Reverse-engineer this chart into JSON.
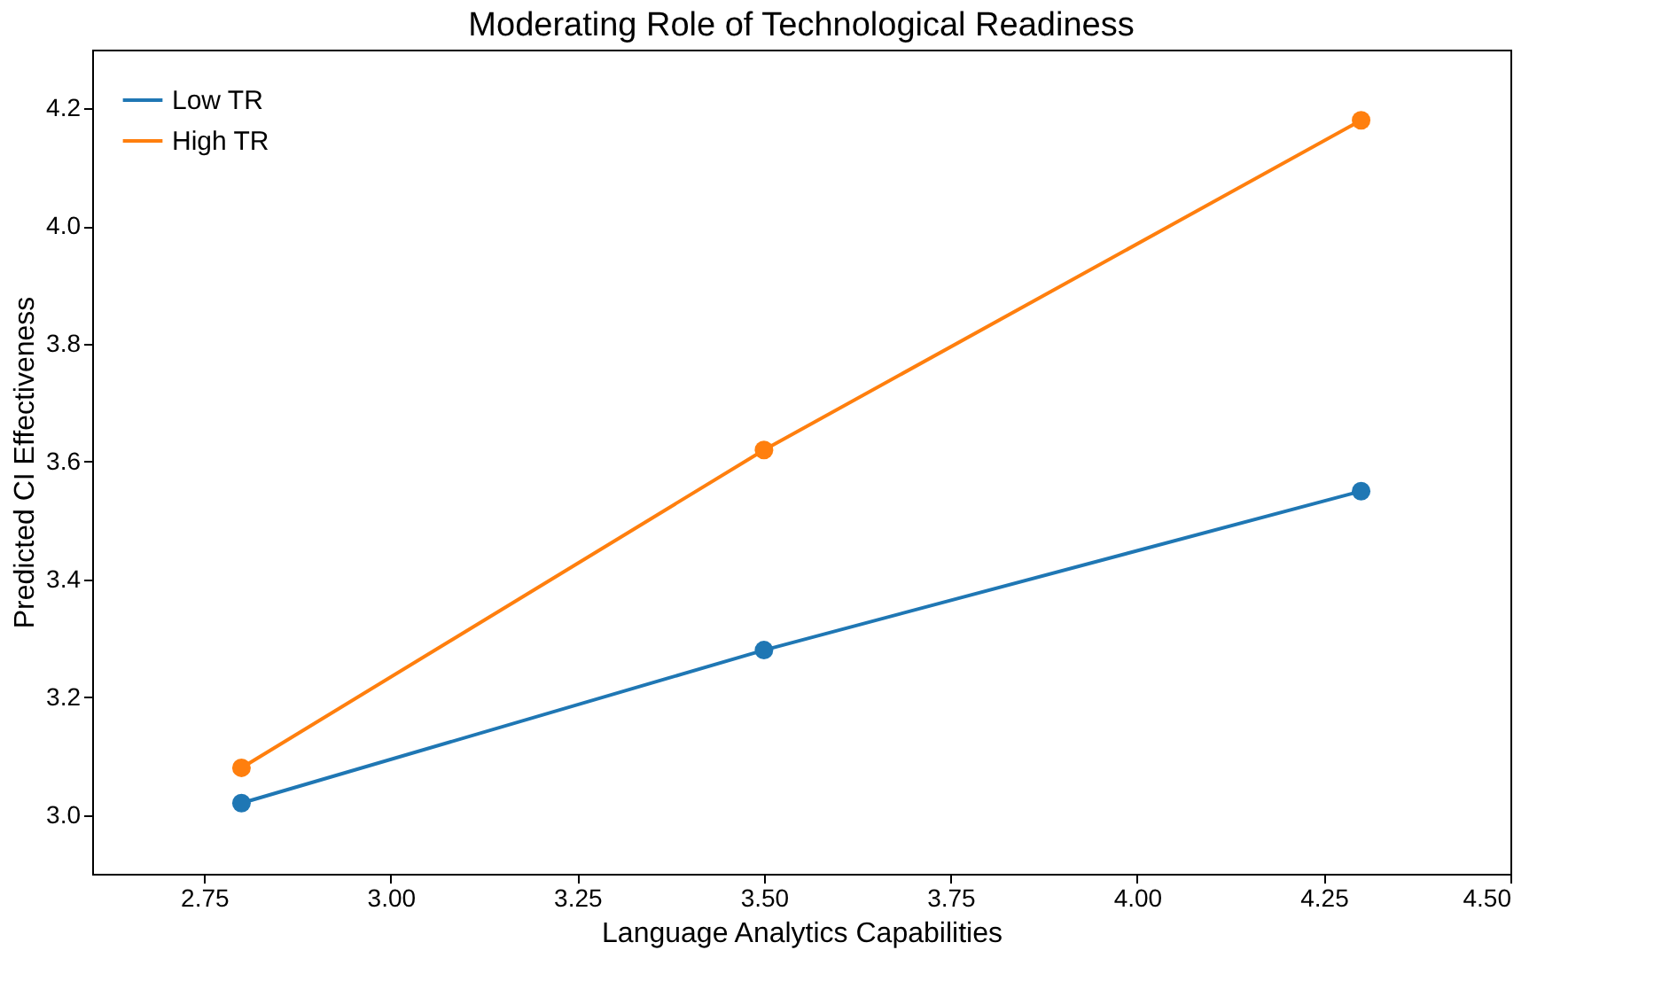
{
  "chart_data": {
    "type": "line",
    "title": "Moderating Role of Technological Readiness",
    "xlabel": "Language Analytics Capabilities",
    "ylabel": "Predicted CI Effectiveness",
    "x": [
      2.8,
      3.5,
      4.3
    ],
    "series": [
      {
        "name": "Low TR",
        "color": "#1f77b4",
        "values": [
          3.02,
          3.28,
          3.55
        ]
      },
      {
        "name": "High TR",
        "color": "#ff7f0e",
        "values": [
          3.08,
          3.62,
          4.18
        ]
      }
    ],
    "xlim": [
      2.6,
      4.5
    ],
    "xticks": [
      {
        "value": 2.75,
        "label": "2.75"
      },
      {
        "value": 3.0,
        "label": "3.00"
      },
      {
        "value": 3.25,
        "label": "3.25"
      },
      {
        "value": 3.5,
        "label": "3.50"
      },
      {
        "value": 3.75,
        "label": "3.75"
      },
      {
        "value": 4.0,
        "label": "4.00"
      },
      {
        "value": 4.25,
        "label": "4.25"
      },
      {
        "value": 4.5,
        "label": "4.50"
      }
    ],
    "ylim": [
      2.9,
      4.3
    ],
    "yticks": [
      {
        "value": 3.0,
        "label": "3.0"
      },
      {
        "value": 3.2,
        "label": "3.2"
      },
      {
        "value": 3.4,
        "label": "3.4"
      },
      {
        "value": 3.6,
        "label": "3.6"
      },
      {
        "value": 3.8,
        "label": "3.8"
      },
      {
        "value": 4.0,
        "label": "4.0"
      },
      {
        "value": 4.2,
        "label": "4.2"
      }
    ],
    "legend": "top left",
    "marker": "circle",
    "line_style": "solid",
    "grid": false
  }
}
